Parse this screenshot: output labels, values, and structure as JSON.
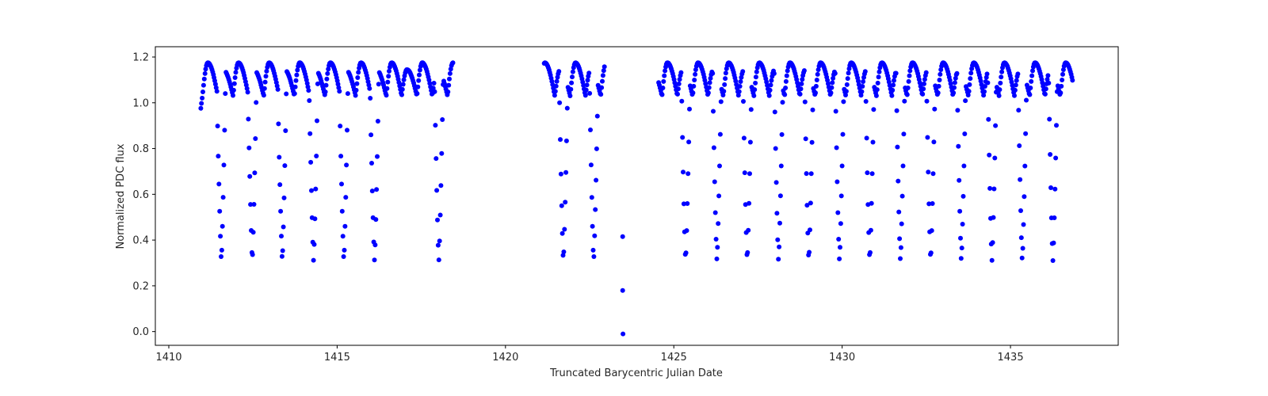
{
  "chart_data": {
    "type": "scatter",
    "title": "",
    "xlabel": "Truncated Barycentric Julian Date",
    "ylabel": "Normalized PDC flux",
    "xlim": [
      1409.6,
      1438.2
    ],
    "ylim": [
      -0.06,
      1.245
    ],
    "xticks": [
      1410,
      1415,
      1420,
      1425,
      1430,
      1435
    ],
    "xtick_labels": [
      "1410",
      "1415",
      "1420",
      "1425",
      "1430",
      "1435"
    ],
    "yticks": [
      0.0,
      0.2,
      0.4,
      0.6,
      0.8,
      1.0,
      1.2
    ],
    "ytick_labels": [
      "0.0",
      "0.2",
      "0.4",
      "0.6",
      "0.8",
      "1.0",
      "1.2"
    ],
    "grid": false,
    "legend": null,
    "marker_color": "#0000ff",
    "marker_size": 3,
    "segments": [
      {
        "start": 1410.95,
        "end": 1418.45
      },
      {
        "start": 1421.15,
        "end": 1422.95
      },
      {
        "start": 1424.55,
        "end": 1436.85
      }
    ],
    "pulsation": {
      "period_days": 0.455,
      "peak_flux_high": 1.175,
      "peak_flux_low": 1.145,
      "trough_flux": 1.03
    },
    "eclipse_minima_days": [
      1411.56,
      1412.48,
      1413.37,
      1414.3,
      1415.2,
      1416.11,
      1418.02,
      1421.72,
      1422.62,
      1425.35,
      1426.28,
      1427.18,
      1428.11,
      1429.01,
      1429.92,
      1430.82,
      1431.73,
      1432.63,
      1433.54,
      1434.45,
      1435.35,
      1436.26
    ],
    "eclipse_min_flux": 0.31,
    "outlier_points": [
      {
        "x": 1423.48,
        "y": 0.415
      },
      {
        "x": 1423.48,
        "y": 0.18
      },
      {
        "x": 1423.49,
        "y": -0.01
      }
    ]
  }
}
